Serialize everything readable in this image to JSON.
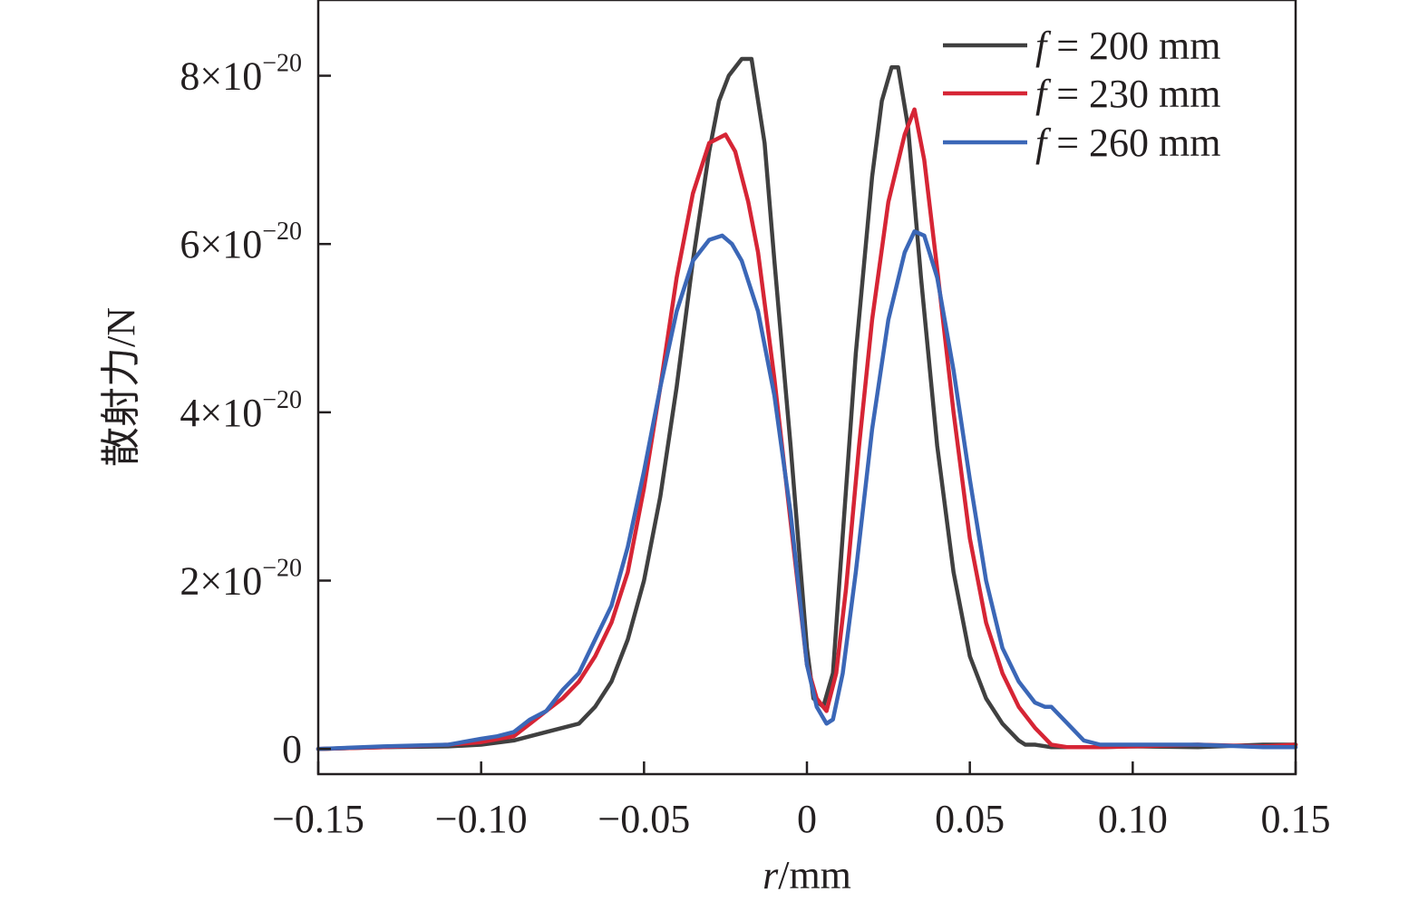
{
  "chart_data": {
    "type": "line",
    "xlabel_var": "r",
    "xlabel_unit": "/mm",
    "ylabel": "散射力/N",
    "xlim": [
      -0.15,
      0.15
    ],
    "ylim": [
      -3e-21,
      8.9e-20
    ],
    "x_ticks": [
      -0.15,
      -0.1,
      -0.05,
      0,
      0.05,
      0.1,
      0.15
    ],
    "x_tick_labels": [
      "−0.15",
      "−0.10",
      "−0.05",
      "0",
      "0.05",
      "0.10",
      "0.15"
    ],
    "y_ticks": [
      0,
      2e-20,
      4e-20,
      6e-20,
      8e-20
    ],
    "y_tick_labels": [
      {
        "mantissa": "0",
        "exp": ""
      },
      {
        "mantissa": "2×10",
        "exp": "−20"
      },
      {
        "mantissa": "4×10",
        "exp": "−20"
      },
      {
        "mantissa": "6×10",
        "exp": "−20"
      },
      {
        "mantissa": "8×10",
        "exp": "−20"
      }
    ],
    "grid": false,
    "legend_position": "top-right",
    "series": [
      {
        "name_var": "f",
        "name_rest": " = 200 mm",
        "color": "#404040",
        "x": [
          -0.15,
          -0.13,
          -0.11,
          -0.1,
          -0.09,
          -0.085,
          -0.08,
          -0.07,
          -0.065,
          -0.06,
          -0.055,
          -0.05,
          -0.045,
          -0.04,
          -0.035,
          -0.03,
          -0.027,
          -0.024,
          -0.02,
          -0.017,
          -0.013,
          -0.01,
          -0.005,
          0,
          0.002,
          0.005,
          0.008,
          0.01,
          0.015,
          0.02,
          0.023,
          0.026,
          0.028,
          0.031,
          0.035,
          0.04,
          0.045,
          0.05,
          0.055,
          0.06,
          0.065,
          0.067,
          0.07,
          0.075,
          0.08,
          0.09,
          0.1,
          0.12,
          0.14,
          0.15
        ],
        "y": [
          0,
          2e-22,
          3e-22,
          5e-22,
          1e-21,
          1.5e-21,
          2e-21,
          3e-21,
          5e-21,
          8e-21,
          1.3e-20,
          2e-20,
          3e-20,
          4.3e-20,
          5.8e-20,
          7.1e-20,
          7.7e-20,
          8e-20,
          8.2e-20,
          8.2e-20,
          7.2e-20,
          5.8e-20,
          3.6e-20,
          1.2e-20,
          6e-21,
          5e-21,
          9e-21,
          2e-20,
          4.7e-20,
          6.8e-20,
          7.7e-20,
          8.1e-20,
          8.1e-20,
          7.4e-20,
          5.6e-20,
          3.6e-20,
          2.1e-20,
          1.1e-20,
          6e-21,
          3e-21,
          1e-21,
          5e-22,
          5e-22,
          2e-22,
          2e-22,
          2e-22,
          3e-22,
          2e-22,
          5e-22,
          5e-22
        ]
      },
      {
        "name_var": "f",
        "name_rest": " = 230 mm",
        "color": "#d62535",
        "x": [
          -0.15,
          -0.13,
          -0.11,
          -0.1,
          -0.09,
          -0.085,
          -0.08,
          -0.075,
          -0.07,
          -0.065,
          -0.06,
          -0.055,
          -0.05,
          -0.045,
          -0.04,
          -0.035,
          -0.03,
          -0.025,
          -0.022,
          -0.018,
          -0.015,
          -0.01,
          -0.005,
          0,
          0.003,
          0.006,
          0.009,
          0.012,
          0.016,
          0.02,
          0.025,
          0.03,
          0.033,
          0.036,
          0.04,
          0.045,
          0.05,
          0.055,
          0.06,
          0.065,
          0.07,
          0.075,
          0.08,
          0.09,
          0.1,
          0.12,
          0.14,
          0.15
        ],
        "y": [
          0,
          2e-22,
          5e-22,
          8e-22,
          1.5e-21,
          3e-21,
          4.5e-21,
          6e-21,
          8e-21,
          1.1e-20,
          1.5e-20,
          2.1e-20,
          3.1e-20,
          4.3e-20,
          5.6e-20,
          6.6e-20,
          7.2e-20,
          7.3e-20,
          7.1e-20,
          6.5e-20,
          5.9e-20,
          4.4e-20,
          2.7e-20,
          1e-20,
          6e-21,
          4.5e-21,
          9e-21,
          1.9e-20,
          3.6e-20,
          5.1e-20,
          6.5e-20,
          7.3e-20,
          7.6e-20,
          7e-20,
          5.7e-20,
          4e-20,
          2.5e-20,
          1.5e-20,
          9e-21,
          5e-21,
          2.5e-21,
          5e-22,
          2e-22,
          2e-22,
          3e-22,
          5e-22,
          3e-22,
          5e-22
        ]
      },
      {
        "name_var": "f",
        "name_rest": " = 260 mm",
        "color": "#3b67b7",
        "x": [
          -0.15,
          -0.13,
          -0.11,
          -0.1,
          -0.095,
          -0.09,
          -0.085,
          -0.08,
          -0.075,
          -0.07,
          -0.065,
          -0.06,
          -0.055,
          -0.05,
          -0.045,
          -0.04,
          -0.035,
          -0.03,
          -0.026,
          -0.023,
          -0.02,
          -0.015,
          -0.01,
          -0.005,
          0,
          0.003,
          0.006,
          0.008,
          0.011,
          0.015,
          0.02,
          0.025,
          0.03,
          0.033,
          0.036,
          0.04,
          0.045,
          0.05,
          0.055,
          0.06,
          0.065,
          0.07,
          0.073,
          0.075,
          0.08,
          0.085,
          0.09,
          0.1,
          0.12,
          0.14,
          0.15
        ],
        "y": [
          0,
          3e-22,
          5e-22,
          1.2e-21,
          1.5e-21,
          2e-21,
          3.5e-21,
          4.5e-21,
          7e-21,
          9e-21,
          1.3e-20,
          1.7e-20,
          2.4e-20,
          3.3e-20,
          4.3e-20,
          5.2e-20,
          5.8e-20,
          6.05e-20,
          6.1e-20,
          6e-20,
          5.8e-20,
          5.2e-20,
          4.2e-20,
          2.8e-20,
          1e-20,
          5e-21,
          3e-21,
          3.5e-21,
          9e-21,
          2.1e-20,
          3.8e-20,
          5.1e-20,
          5.9e-20,
          6.15e-20,
          6.1e-20,
          5.6e-20,
          4.5e-20,
          3.2e-20,
          2e-20,
          1.2e-20,
          8e-21,
          5.5e-21,
          5e-21,
          5e-21,
          3e-21,
          1e-21,
          5e-22,
          5e-22,
          5e-22,
          2e-22,
          2e-22
        ]
      }
    ]
  }
}
